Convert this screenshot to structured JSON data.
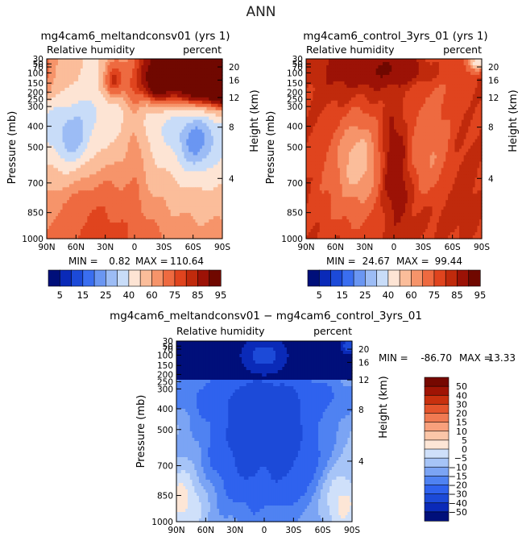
{
  "page_title": "ANN",
  "colors": {
    "field_scale": [
      "#000f7a",
      "#0a2ab8",
      "#1c4ad8",
      "#3a6ef0",
      "#6a96f2",
      "#9cbcf5",
      "#c8dcf8",
      "#fde4d4",
      "#fbbd9a",
      "#f6946a",
      "#ee6a40",
      "#e0441e",
      "#c02a0c",
      "#9c1206",
      "#700800"
    ],
    "diff_scale": [
      "#000f7a",
      "#0a2ab8",
      "#1c4ad8",
      "#2f62ee",
      "#4f82f2",
      "#7ba4f4",
      "#a6c4f7",
      "#cfe0fa",
      "#fde6d6",
      "#fbc6a8",
      "#f8a07c",
      "#f07a52",
      "#e4542c",
      "#c8300e",
      "#a01404",
      "#760800"
    ]
  },
  "chart_data": [
    {
      "type": "heatmap",
      "title": "mg4cam6_meltandconsv01 (yrs 1)",
      "left_label": "Relative humidity",
      "right_label": "percent",
      "ylabel": "Pressure (mb)",
      "right_axis_label": "Height (km)",
      "x_ticks": [
        "90N",
        "60N",
        "30N",
        "0",
        "30S",
        "60S",
        "90S"
      ],
      "y_ticks": [
        "30",
        "50",
        "70",
        "100",
        "150",
        "200",
        "250",
        "300",
        "400",
        "500",
        "700",
        "850",
        "1000"
      ],
      "height_ticks": [
        "20",
        "16",
        "12",
        "8",
        "4"
      ],
      "stats": {
        "min_label": "MIN =",
        "min": "0.82",
        "max_label": "MAX =",
        "max": "110.64"
      },
      "levels": [
        "5",
        "15",
        "25",
        "40",
        "60",
        "75",
        "85",
        "95"
      ],
      "scale_colors": 15
    },
    {
      "type": "heatmap",
      "title": "mg4cam6_control_3yrs_01 (yrs 1)",
      "left_label": "Relative humidity",
      "right_label": "percent",
      "ylabel": "Pressure (mb)",
      "right_axis_label": "Height (km)",
      "x_ticks": [
        "90N",
        "60N",
        "30N",
        "0",
        "30S",
        "60S",
        "90S"
      ],
      "y_ticks": [
        "30",
        "50",
        "70",
        "100",
        "150",
        "200",
        "250",
        "300",
        "400",
        "500",
        "700",
        "850",
        "1000"
      ],
      "height_ticks": [
        "20",
        "16",
        "12",
        "8",
        "4"
      ],
      "stats": {
        "min_label": "MIN =",
        "min": "24.67",
        "max_label": "MAX =",
        "max": "99.44"
      },
      "levels": [
        "5",
        "15",
        "25",
        "40",
        "60",
        "75",
        "85",
        "95"
      ],
      "scale_colors": 15
    },
    {
      "type": "heatmap",
      "title": "mg4cam6_meltandconsv01 − mg4cam6_control_3yrs_01",
      "left_label": "Relative humidity",
      "right_label": "percent",
      "ylabel": "Pressure (mb)",
      "right_axis_label": "Height (km)",
      "x_ticks": [
        "90N",
        "60N",
        "30N",
        "0",
        "30S",
        "60S",
        "90S"
      ],
      "y_ticks": [
        "30",
        "50",
        "70",
        "100",
        "150",
        "200",
        "250",
        "300",
        "400",
        "500",
        "700",
        "850",
        "1000"
      ],
      "height_ticks": [
        "20",
        "16",
        "12",
        "8",
        "4"
      ],
      "stats": {
        "min_label": "MIN =",
        "min": "-86.70",
        "max_label": "MAX =",
        "max": "13.33"
      },
      "levels": [
        "50",
        "40",
        "30",
        "20",
        "15",
        "10",
        "5",
        "0",
        "−5",
        "−10",
        "−15",
        "−20",
        "−30",
        "−40",
        "−50"
      ]
    }
  ]
}
